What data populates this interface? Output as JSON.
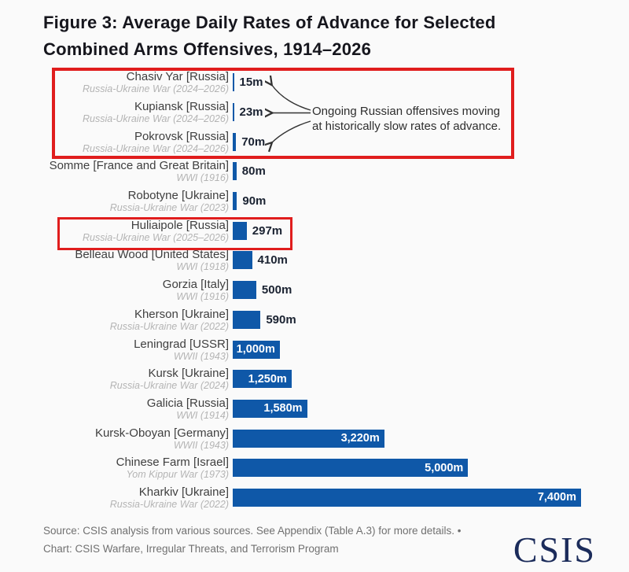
{
  "title": {
    "line1": "Figure 3: Average Daily Rates of Advance for Selected",
    "line2": "Combined Arms Offensives, 1914–2026"
  },
  "chart_data": {
    "type": "bar",
    "orientation": "horizontal",
    "unit": "meters per day",
    "xlim": [
      0,
      7400
    ],
    "grid": false,
    "legend": "none",
    "bar_color": "#0f58a8",
    "inside_label_threshold": 1000,
    "rows": [
      {
        "label": "Chasiv Yar [Russia]",
        "sublabel": "Russia-Ukraine War (2024–2026)",
        "value": 15,
        "value_label": "15m"
      },
      {
        "label": "Kupiansk [Russia]",
        "sublabel": "Russia-Ukraine War (2024–2026)",
        "value": 23,
        "value_label": "23m"
      },
      {
        "label": "Pokrovsk [Russia]",
        "sublabel": "Russia-Ukraine War (2024–2026)",
        "value": 70,
        "value_label": "70m"
      },
      {
        "label": "Somme [France and Great Britain]",
        "sublabel": "WWI (1916)",
        "value": 80,
        "value_label": "80m"
      },
      {
        "label": "Robotyne [Ukraine]",
        "sublabel": "Russia-Ukraine War (2023)",
        "value": 90,
        "value_label": "90m"
      },
      {
        "label": "Huliaipole [Russia]",
        "sublabel": "Russia-Ukraine War (2025–2026)",
        "value": 297,
        "value_label": "297m"
      },
      {
        "label": "Belleau Wood [United States]",
        "sublabel": "WWI (1918)",
        "value": 410,
        "value_label": "410m"
      },
      {
        "label": "Gorzia [Italy]",
        "sublabel": "WWI (1916)",
        "value": 500,
        "value_label": "500m"
      },
      {
        "label": "Kherson [Ukraine]",
        "sublabel": "Russia-Ukraine War (2022)",
        "value": 590,
        "value_label": "590m"
      },
      {
        "label": "Leningrad [USSR]",
        "sublabel": "WWII (1943)",
        "value": 1000,
        "value_label": "1,000m"
      },
      {
        "label": "Kursk [Ukraine]",
        "sublabel": "Russia-Ukraine War (2024)",
        "value": 1250,
        "value_label": "1,250m"
      },
      {
        "label": "Galicia [Russia]",
        "sublabel": "WWI (1914)",
        "value": 1580,
        "value_label": "1,580m"
      },
      {
        "label": "Kursk-Oboyan [Germany]",
        "sublabel": "WWII (1943)",
        "value": 3220,
        "value_label": "3,220m"
      },
      {
        "label": "Chinese Farm [Israel]",
        "sublabel": "Yom Kippur War (1973)",
        "value": 5000,
        "value_label": "5,000m"
      },
      {
        "label": "Kharkiv [Ukraine]",
        "sublabel": "Russia-Ukraine War (2022)",
        "value": 7400,
        "value_label": "7,400m"
      }
    ]
  },
  "annotation": {
    "line1": "Ongoing Russian offensives moving",
    "line2": "at historically slow rates of advance."
  },
  "highlights": {
    "box_color": "#e01d1d",
    "ongoing_box_rows": [
      "Chasiv Yar [Russia]",
      "Kupiansk [Russia]",
      "Pokrovsk [Russia]"
    ],
    "single_box_row": "Huliaipole [Russia]"
  },
  "footer": {
    "line1": "Source: CSIS analysis from various sources. See Appendix (Table A.3) for more details. •",
    "line2": "Chart: CSIS Warfare, Irregular Threats, and Terrorism Program",
    "logo": "CSIS"
  },
  "colors": {
    "background": "#fafafa",
    "title": "#16161d",
    "bar": "#0f58a8",
    "red_box": "#e01d1d",
    "label": "#3f3f3f",
    "sublabel": "#b4b4b4",
    "value_dark": "#1a2231",
    "value_light": "#ffffff",
    "footer_text": "#707070",
    "logo_navy": "#1b2b5a",
    "annotation_text": "#2e2e2e"
  }
}
